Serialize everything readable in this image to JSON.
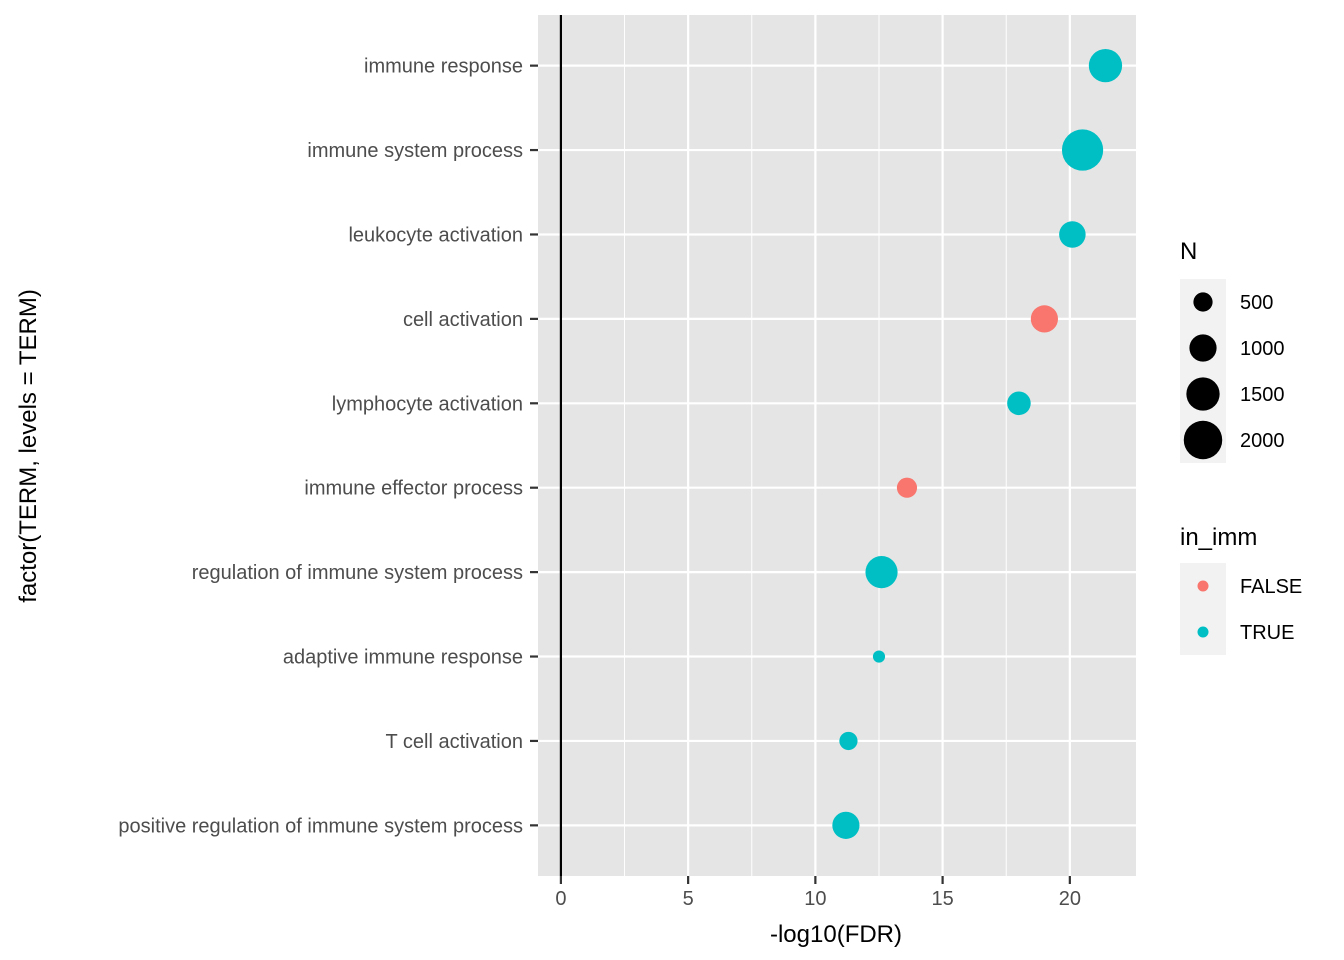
{
  "chart_data": {
    "type": "scatter",
    "xlabel": "-log10(FDR)",
    "ylabel": "factor(TERM, levels = TERM)",
    "xlim": [
      -0.9,
      22.6
    ],
    "xticks": [
      0,
      5,
      10,
      15,
      20
    ],
    "vline_x": 0,
    "grid": true,
    "colors": {
      "FALSE": "#F8766D",
      "TRUE": "#00BFC4",
      "panel": "#E5E5E5",
      "grid": "#FFFFFF"
    },
    "categories": [
      "immune response",
      "immune system process",
      "leukocyte activation",
      "cell activation",
      "lymphocyte activation",
      "immune effector process",
      "regulation of immune system process",
      "adaptive immune response",
      "T cell activation",
      "positive regulation of immune system process"
    ],
    "points": [
      {
        "term": "immune response",
        "x": 21.4,
        "N": 1500,
        "in_imm": "TRUE"
      },
      {
        "term": "immune system process",
        "x": 20.5,
        "N": 2300,
        "in_imm": "TRUE"
      },
      {
        "term": "leukocyte activation",
        "x": 20.1,
        "N": 950,
        "in_imm": "TRUE"
      },
      {
        "term": "cell activation",
        "x": 19.0,
        "N": 1000,
        "in_imm": "FALSE"
      },
      {
        "term": "lymphocyte activation",
        "x": 18.0,
        "N": 750,
        "in_imm": "TRUE"
      },
      {
        "term": "immune effector process",
        "x": 13.6,
        "N": 550,
        "in_imm": "FALSE"
      },
      {
        "term": "regulation of immune system process",
        "x": 12.6,
        "N": 1400,
        "in_imm": "TRUE"
      },
      {
        "term": "adaptive immune response",
        "x": 12.5,
        "N": 200,
        "in_imm": "TRUE"
      },
      {
        "term": "T cell activation",
        "x": 11.3,
        "N": 450,
        "in_imm": "TRUE"
      },
      {
        "term": "positive regulation of immune system process",
        "x": 11.2,
        "N": 1000,
        "in_imm": "TRUE"
      }
    ],
    "legend": {
      "size": {
        "title": "N",
        "values": [
          500,
          1000,
          1500,
          2000
        ]
      },
      "color": {
        "title": "in_imm",
        "entries": [
          "FALSE",
          "TRUE"
        ]
      },
      "placement": "right"
    }
  }
}
